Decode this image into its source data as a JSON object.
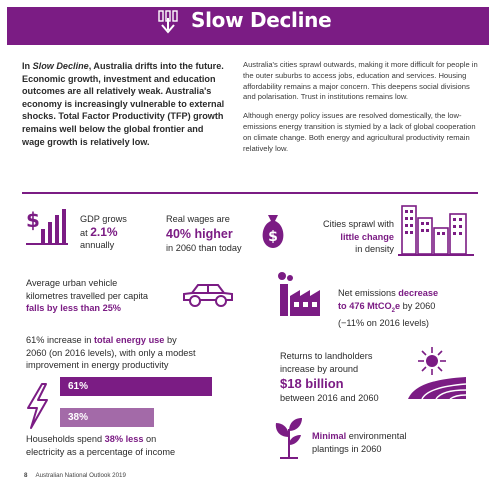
{
  "header": {
    "title": "Slow Decline",
    "icon": "downward-arrow-chart-icon",
    "color": "#7b1c84"
  },
  "intro": {
    "left_prefix": "In ",
    "left_italic": "Slow Decline",
    "left_text": ", Australia drifts into the future. Economic growth, investment and education outcomes are all relatively weak. Australia's economy is increasingly vulnerable to external shocks. Total Factor Productivity (TFP) growth remains well below the global frontier and wage growth is relatively low.",
    "right_p1": "Australia's cities sprawl outwards, making it more difficult for people in the outer suburbs to access jobs, education and services. Housing affordability remains a major concern. This deepens social divisions and polarisation. Trust in institutions remains low.",
    "right_p2": "Although energy policy issues are resolved domestically, the low-emissions energy transition is stymied by a lack of global cooperation on climate change. Both energy and agricultural productivity remain relatively low."
  },
  "stats": {
    "gdp": {
      "line1": "GDP grows",
      "line2_prefix": "at ",
      "value": "2.1%",
      "line3": "annually",
      "icon": "dollar-bar-chart-icon"
    },
    "wages": {
      "line1": "Real wages are",
      "value": "40% higher",
      "line3": "in 2060 than today",
      "icon": "money-bag-icon"
    },
    "cities": {
      "line1": "Cities sprawl with",
      "value": "little change",
      "line3": "in density",
      "icon": "city-buildings-icon"
    },
    "vehicle": {
      "line1": "Average urban vehicle",
      "line2": "kilometres travelled per capita",
      "value": "falls by less than 25%",
      "icon": "car-icon"
    },
    "emissions": {
      "line1": "Net emissions",
      "value_a": "decrease",
      "value_b": "to 476 MtCO",
      "sub": "2",
      "value_c": "e",
      "line2_suffix": " by 2060",
      "line3": "(−11% on 2016 levels)",
      "icon": "factory-icon"
    },
    "energy": {
      "line1_prefix": "61% increase in ",
      "value": "total energy use",
      "line1_suffix": " by",
      "line2": "2060 (on 2016 levels), with only a modest",
      "line3": "improvement in energy productivity",
      "icon": "lightning-icon"
    },
    "bars": [
      {
        "label": "61%",
        "value": 61,
        "color": "#7b1c84"
      },
      {
        "label": "38%",
        "value": 38,
        "color": "#a36aa8"
      }
    ],
    "electricity": {
      "line1_prefix": "Households spend ",
      "value": "38% less",
      "line1_suffix": " on",
      "line2": "electricity as a percentage of income"
    },
    "landholders": {
      "line1": "Returns to landholders",
      "line2": "increase by around",
      "value": "$18 billion",
      "line3": "between 2016 and 2060",
      "icon": "sun-field-icon"
    },
    "plantings": {
      "value": "Minimal",
      "line1_suffix": " environmental",
      "line2": "plantings in 2060",
      "icon": "plant-sprout-icon"
    }
  },
  "footer": {
    "page": "8",
    "title": "Australian National Outlook 2019"
  }
}
